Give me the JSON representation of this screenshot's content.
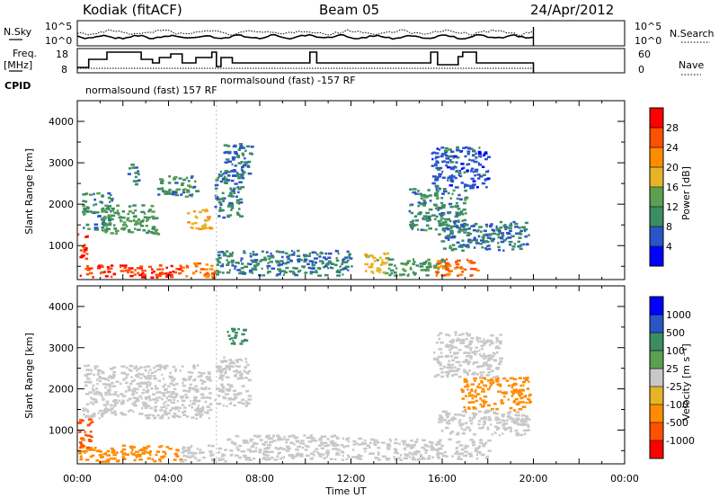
{
  "header": {
    "radar": "Kodiak (fitACF)",
    "beam": "Beam 05",
    "date": "24/Apr/2012"
  },
  "top_panels": {
    "nsky_label": "N.Sky",
    "nsky_ticks": [
      "10^5",
      "10^0"
    ],
    "nsearch_label": "N.Search",
    "freq_label_1": "Freq.",
    "freq_label_2": "[MHz]",
    "freq_ticks": [
      "18",
      "8"
    ],
    "nave_ticks": [
      "60",
      "0"
    ],
    "nave_label": "Nave",
    "cpid_label": "CPID",
    "cpid_1": "normalsound (fast) 157 RF",
    "cpid_2": "normalsound (fast) -157 RF"
  },
  "colorbars": {
    "power": {
      "label": "Power [dB]",
      "ticks": [
        "28",
        "24",
        "20",
        "16",
        "12",
        "8",
        "4"
      ],
      "colors": [
        "#0000ff",
        "#2a55c8",
        "#3c8c64",
        "#5aa050",
        "#e6b428",
        "#ff8c00",
        "#ff5000",
        "#ff0000"
      ]
    },
    "velocity": {
      "label": "Velocity [m s⁻¹]",
      "ticks": [
        "1000",
        "500",
        "100",
        "25",
        "-25",
        "-100",
        "-500",
        "-1000"
      ],
      "colors": [
        "#ff0000",
        "#ff5000",
        "#ff8c00",
        "#e6b428",
        "#c8c8c8",
        "#5aa050",
        "#3c8c64",
        "#2a55c8",
        "#0000ff"
      ]
    }
  },
  "chart_data": [
    {
      "type": "heatmap",
      "name": "power",
      "ylabel": "Slant Range [km]",
      "y_ticks": [
        "1000",
        "2000",
        "3000",
        "4000"
      ],
      "xlim_hours": [
        0,
        24
      ],
      "ylim_km": [
        180,
        4500
      ],
      "blobs": [
        {
          "x": [
            0.0,
            0.4
          ],
          "y": [
            700,
            1300
          ],
          "v": 27
        },
        {
          "x": [
            0.1,
            4.5
          ],
          "y": [
            250,
            550
          ],
          "v": 27
        },
        {
          "x": [
            4.5,
            6.0
          ],
          "y": [
            250,
            600
          ],
          "v": 24
        },
        {
          "x": [
            0.2,
            1.5
          ],
          "y": [
            1400,
            2300
          ],
          "v": 10
        },
        {
          "x": [
            1.0,
            3.5
          ],
          "y": [
            1300,
            2000
          ],
          "v": 12
        },
        {
          "x": [
            2.2,
            2.7
          ],
          "y": [
            2500,
            3000
          ],
          "v": 9
        },
        {
          "x": [
            3.5,
            5.2
          ],
          "y": [
            2200,
            2700
          ],
          "v": 10
        },
        {
          "x": [
            4.8,
            5.8
          ],
          "y": [
            1400,
            1900
          ],
          "v": 20
        },
        {
          "x": [
            6.0,
            7.2
          ],
          "y": [
            1700,
            2900
          ],
          "v": 9
        },
        {
          "x": [
            6.4,
            7.6
          ],
          "y": [
            2700,
            3500
          ],
          "v": 8
        },
        {
          "x": [
            6.0,
            12.0
          ],
          "y": [
            300,
            900
          ],
          "v": 9
        },
        {
          "x": [
            12.5,
            13.6
          ],
          "y": [
            350,
            850
          ],
          "v": 18
        },
        {
          "x": [
            13.6,
            16.2
          ],
          "y": [
            300,
            700
          ],
          "v": 12
        },
        {
          "x": [
            15.6,
            17.5
          ],
          "y": [
            300,
            700
          ],
          "v": 25
        },
        {
          "x": [
            14.5,
            17.0
          ],
          "y": [
            1400,
            2400
          ],
          "v": 10
        },
        {
          "x": [
            15.8,
            19.8
          ],
          "y": [
            900,
            1600
          ],
          "v": 8
        },
        {
          "x": [
            15.5,
            18.0
          ],
          "y": [
            2400,
            3400
          ],
          "v": 6
        }
      ]
    },
    {
      "type": "heatmap",
      "name": "velocity",
      "ylabel": "Slant Range [km]",
      "y_ticks": [
        "1000",
        "2000",
        "3000",
        "4000"
      ],
      "xlabel": "Time UT",
      "x_ticks": [
        "00:00",
        "04:00",
        "08:00",
        "12:00",
        "16:00",
        "20:00",
        "00:00"
      ],
      "xlim_hours": [
        0,
        24
      ],
      "ylim_km": [
        180,
        4500
      ],
      "blobs": [
        {
          "x": [
            0.0,
            4.5
          ],
          "y": [
            250,
            650
          ],
          "v": -150
        },
        {
          "x": [
            0.0,
            0.6
          ],
          "y": [
            600,
            1300
          ],
          "v": -600
        },
        {
          "x": [
            4.5,
            6.5
          ],
          "y": [
            250,
            650
          ],
          "v": 0
        },
        {
          "x": [
            0.2,
            5.8
          ],
          "y": [
            1300,
            2600
          ],
          "v": 0
        },
        {
          "x": [
            6.0,
            7.5
          ],
          "y": [
            1600,
            2800
          ],
          "v": 0
        },
        {
          "x": [
            6.5,
            12.5
          ],
          "y": [
            300,
            900
          ],
          "v": 0
        },
        {
          "x": [
            12.5,
            18.0
          ],
          "y": [
            300,
            800
          ],
          "v": 0
        },
        {
          "x": [
            16.8,
            19.8
          ],
          "y": [
            1500,
            2300
          ],
          "v": -150
        },
        {
          "x": [
            15.6,
            18.5
          ],
          "y": [
            2300,
            3400
          ],
          "v": 0
        },
        {
          "x": [
            15.8,
            19.8
          ],
          "y": [
            900,
            1500
          ],
          "v": 0
        },
        {
          "x": [
            6.5,
            7.4
          ],
          "y": [
            3100,
            3500
          ],
          "v": 200
        }
      ]
    }
  ]
}
